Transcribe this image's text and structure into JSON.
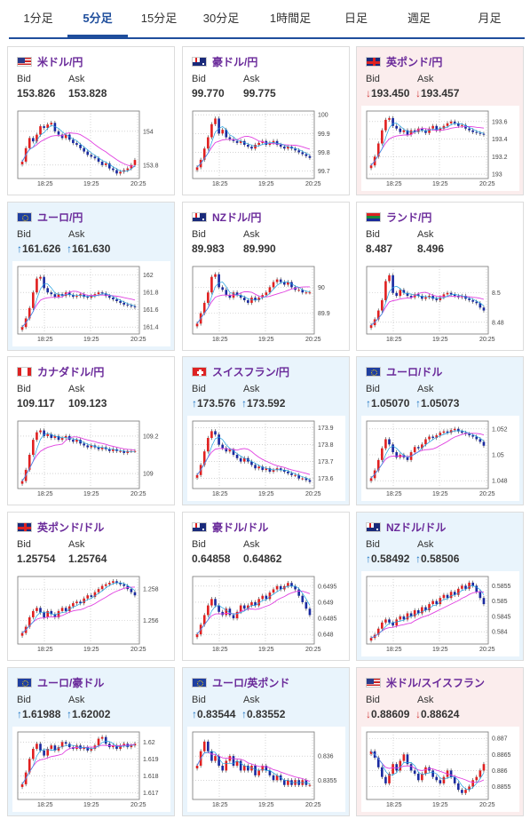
{
  "tabs": [
    {
      "label": "1分足",
      "active": false
    },
    {
      "label": "5分足",
      "active": true
    },
    {
      "label": "15分足",
      "active": false
    },
    {
      "label": "30分足",
      "active": false
    },
    {
      "label": "1時間足",
      "active": false
    },
    {
      "label": "日足",
      "active": false
    },
    {
      "label": "週足",
      "active": false
    },
    {
      "label": "月足",
      "active": false
    }
  ],
  "labels": {
    "bid": "Bid",
    "ask": "Ask"
  },
  "colors": {
    "accent": "#1f4e9c",
    "pair_name": "#6a2a9a",
    "up_card": "#e9f4fc",
    "down_card": "#fbeded",
    "up_arrow": "#1a73c2",
    "down_arrow": "#d23c3c",
    "bull_candle": "#e02020",
    "bear_candle": "#1a2aa0",
    "moving_avg": "#e040e0",
    "moving_avg_short": "#20a0e0"
  },
  "cards": [
    {
      "name": "米ドル/円",
      "flag": "us-jp-flag",
      "bid": "153.826",
      "ask": "153.828",
      "trend": "none",
      "x_ticks": [
        "18:25",
        "19:25",
        "20:25"
      ],
      "y_ticks": [
        "154",
        "153.8"
      ],
      "chart_data": {
        "type": "candlestick",
        "x_ticks": [
          "18:25",
          "19:25",
          "20:25"
        ],
        "y_ticks": [
          154,
          153.8
        ],
        "ylim": [
          153.72,
          154.12
        ],
        "close": [
          153.82,
          153.9,
          153.96,
          153.94,
          153.98,
          154.03,
          154.02,
          154.04,
          154.05,
          154.0,
          153.98,
          153.96,
          153.98,
          153.95,
          153.93,
          153.92,
          153.9,
          153.88,
          153.86,
          153.85,
          153.84,
          153.82,
          153.8,
          153.81,
          153.78,
          153.77,
          153.75,
          153.76,
          153.77,
          153.78,
          153.8,
          153.83
        ]
      }
    },
    {
      "name": "豪ドル/円",
      "flag": "au-jp-flag",
      "bid": "99.770",
      "ask": "99.775",
      "trend": "none",
      "x_ticks": [
        "18:25",
        "19:25",
        "20:25"
      ],
      "y_ticks": [
        "100",
        "99.9",
        "99.8",
        "99.7"
      ],
      "chart_data": {
        "type": "candlestick",
        "x_ticks": [
          "18:25",
          "19:25",
          "20:25"
        ],
        "y_ticks": [
          100,
          99.9,
          99.8,
          99.7
        ],
        "ylim": [
          99.66,
          100.02
        ],
        "close": [
          99.72,
          99.76,
          99.82,
          99.88,
          99.95,
          99.98,
          99.9,
          99.92,
          99.88,
          99.87,
          99.86,
          99.85,
          99.86,
          99.84,
          99.83,
          99.82,
          99.84,
          99.85,
          99.86,
          99.84,
          99.85,
          99.86,
          99.84,
          99.83,
          99.82,
          99.83,
          99.82,
          99.81,
          99.8,
          99.79,
          99.78,
          99.77
        ]
      }
    },
    {
      "name": "英ポンド/円",
      "flag": "gb-jp-flag",
      "bid": "193.450",
      "ask": "193.457",
      "trend": "down",
      "x_ticks": [
        "18:25",
        "19:25",
        "20:25"
      ],
      "y_ticks": [
        "193.6",
        "193.4",
        "193.2",
        "193"
      ],
      "chart_data": {
        "type": "candlestick",
        "x_ticks": [
          "18:25",
          "19:25",
          "20:25"
        ],
        "y_ticks": [
          193.6,
          193.4,
          193.2,
          193
        ],
        "ylim": [
          192.95,
          193.72
        ],
        "close": [
          193.1,
          193.2,
          193.35,
          193.5,
          193.62,
          193.64,
          193.55,
          193.52,
          193.48,
          193.5,
          193.45,
          193.5,
          193.48,
          193.52,
          193.5,
          193.47,
          193.52,
          193.55,
          193.5,
          193.52,
          193.55,
          193.58,
          193.6,
          193.58,
          193.55,
          193.56,
          193.52,
          193.5,
          193.48,
          193.47,
          193.46,
          193.45
        ]
      }
    },
    {
      "name": "ユーロ/円",
      "flag": "eu-jp-flag",
      "bid": "161.626",
      "ask": "161.630",
      "trend": "up",
      "x_ticks": [
        "18:25",
        "19:25",
        "20:25"
      ],
      "y_ticks": [
        "162",
        "161.8",
        "161.6",
        "161.4"
      ],
      "chart_data": {
        "type": "candlestick",
        "x_ticks": [
          "18:25",
          "19:25",
          "20:25"
        ],
        "y_ticks": [
          162,
          161.8,
          161.6,
          161.4
        ],
        "ylim": [
          161.32,
          162.1
        ],
        "close": [
          161.4,
          161.5,
          161.62,
          161.8,
          161.96,
          161.98,
          161.85,
          161.8,
          161.78,
          161.75,
          161.78,
          161.76,
          161.8,
          161.77,
          161.75,
          161.76,
          161.78,
          161.75,
          161.74,
          161.76,
          161.78,
          161.8,
          161.79,
          161.76,
          161.74,
          161.72,
          161.7,
          161.68,
          161.66,
          161.65,
          161.64,
          161.63
        ]
      }
    },
    {
      "name": "NZドル/円",
      "flag": "nz-jp-flag",
      "bid": "89.983",
      "ask": "89.990",
      "trend": "none",
      "x_ticks": [
        "18:25",
        "19:25",
        "20:25"
      ],
      "y_ticks": [
        "90",
        "89.9"
      ],
      "chart_data": {
        "type": "candlestick",
        "x_ticks": [
          "18:25",
          "19:25",
          "20:25"
        ],
        "y_ticks": [
          90,
          89.9
        ],
        "ylim": [
          89.82,
          90.08
        ],
        "close": [
          89.86,
          89.9,
          89.94,
          89.98,
          90.04,
          90.05,
          90.0,
          89.99,
          89.97,
          89.96,
          89.98,
          89.97,
          89.96,
          89.95,
          89.94,
          89.96,
          89.95,
          89.96,
          89.97,
          89.98,
          90.0,
          90.02,
          90.03,
          90.02,
          90.01,
          90.02,
          90.0,
          89.99,
          89.99,
          89.98,
          89.98,
          89.98
        ]
      }
    },
    {
      "name": "ランド/円",
      "flag": "za-jp-flag",
      "bid": "8.487",
      "ask": "8.496",
      "trend": "none",
      "x_ticks": [
        "18:25",
        "19:25",
        "20:25"
      ],
      "y_ticks": [
        "8.5",
        "8.48"
      ],
      "chart_data": {
        "type": "candlestick",
        "x_ticks": [
          "18:25",
          "19:25",
          "20:25"
        ],
        "y_ticks": [
          8.5,
          8.48
        ],
        "ylim": [
          8.472,
          8.518
        ],
        "close": [
          8.478,
          8.482,
          8.488,
          8.495,
          8.508,
          8.512,
          8.5,
          8.498,
          8.502,
          8.5,
          8.498,
          8.497,
          8.499,
          8.498,
          8.496,
          8.497,
          8.498,
          8.496,
          8.495,
          8.497,
          8.499,
          8.5,
          8.499,
          8.498,
          8.497,
          8.498,
          8.496,
          8.495,
          8.494,
          8.493,
          8.49,
          8.488
        ]
      }
    },
    {
      "name": "カナダドル/円",
      "flag": "ca-jp-flag",
      "bid": "109.117",
      "ask": "109.123",
      "trend": "none",
      "x_ticks": [
        "18:25",
        "19:25",
        "20:25"
      ],
      "y_ticks": [
        "109.2",
        "109"
      ],
      "chart_data": {
        "type": "candlestick",
        "x_ticks": [
          "18:25",
          "19:25",
          "20:25"
        ],
        "y_ticks": [
          109.2,
          109
        ],
        "ylim": [
          108.92,
          109.28
        ],
        "close": [
          108.96,
          109.02,
          109.1,
          109.18,
          109.22,
          109.23,
          109.2,
          109.21,
          109.19,
          109.2,
          109.18,
          109.19,
          109.2,
          109.18,
          109.17,
          109.18,
          109.16,
          109.15,
          109.14,
          109.15,
          109.14,
          109.13,
          109.14,
          109.13,
          109.12,
          109.13,
          109.12,
          109.12,
          109.11,
          109.12,
          109.12,
          109.12
        ]
      }
    },
    {
      "name": "スイスフラン/円",
      "flag": "ch-jp-flag",
      "bid": "173.576",
      "ask": "173.592",
      "trend": "up",
      "x_ticks": [
        "18:25",
        "19:25",
        "20:25"
      ],
      "y_ticks": [
        "173.9",
        "173.8",
        "173.7",
        "173.6"
      ],
      "chart_data": {
        "type": "candlestick",
        "x_ticks": [
          "18:25",
          "19:25",
          "20:25"
        ],
        "y_ticks": [
          173.9,
          173.8,
          173.7,
          173.6
        ],
        "ylim": [
          173.54,
          173.94
        ],
        "close": [
          173.62,
          173.68,
          173.76,
          173.84,
          173.88,
          173.86,
          173.8,
          173.78,
          173.76,
          173.77,
          173.74,
          173.72,
          173.7,
          173.72,
          173.7,
          173.68,
          173.66,
          173.67,
          173.65,
          173.66,
          173.64,
          173.65,
          173.66,
          173.65,
          173.64,
          173.63,
          173.62,
          173.62,
          173.6,
          173.6,
          173.59,
          173.58
        ]
      }
    },
    {
      "name": "ユーロ/ドル",
      "flag": "eu-us-flag",
      "bid": "1.05070",
      "ask": "1.05073",
      "trend": "up",
      "x_ticks": [
        "18:25",
        "19:25",
        "20:25"
      ],
      "y_ticks": [
        "1.052",
        "1.05",
        "1.048"
      ],
      "chart_data": {
        "type": "candlestick",
        "x_ticks": [
          "18:25",
          "19:25",
          "20:25"
        ],
        "y_ticks": [
          1.052,
          1.05,
          1.048
        ],
        "ylim": [
          1.0474,
          1.0526
        ],
        "close": [
          1.0482,
          1.0488,
          1.0496,
          1.0505,
          1.0512,
          1.0508,
          1.0502,
          1.0498,
          1.05,
          1.0498,
          1.0496,
          1.0502,
          1.0506,
          1.0505,
          1.0508,
          1.0512,
          1.0514,
          1.0513,
          1.0515,
          1.0517,
          1.0518,
          1.0517,
          1.0519,
          1.052,
          1.0518,
          1.0517,
          1.0516,
          1.0515,
          1.0514,
          1.0512,
          1.051,
          1.0507
        ]
      }
    },
    {
      "name": "英ポンド/ドル",
      "flag": "gb-us-flag",
      "bid": "1.25754",
      "ask": "1.25764",
      "trend": "none",
      "x_ticks": [
        "18:25",
        "19:25",
        "20:25"
      ],
      "y_ticks": [
        "1.258",
        "1.256"
      ],
      "chart_data": {
        "type": "candlestick",
        "x_ticks": [
          "18:25",
          "19:25",
          "20:25"
        ],
        "y_ticks": [
          1.258,
          1.256
        ],
        "ylim": [
          1.2545,
          1.2588
        ],
        "close": [
          1.2552,
          1.2556,
          1.2562,
          1.2566,
          1.2568,
          1.2565,
          1.2562,
          1.2566,
          1.2564,
          1.2562,
          1.2566,
          1.2568,
          1.2566,
          1.2569,
          1.2571,
          1.2572,
          1.2571,
          1.2574,
          1.2576,
          1.2575,
          1.2578,
          1.258,
          1.2582,
          1.2583,
          1.2584,
          1.2585,
          1.2584,
          1.2583,
          1.2582,
          1.258,
          1.2578,
          1.2576
        ]
      }
    },
    {
      "name": "豪ドル/ドル",
      "flag": "au-us-flag",
      "bid": "0.64858",
      "ask": "0.64862",
      "trend": "none",
      "x_ticks": [
        "18:25",
        "19:25",
        "20:25"
      ],
      "y_ticks": [
        "0.6495",
        "0.649",
        "0.6485",
        "0.648"
      ],
      "chart_data": {
        "type": "candlestick",
        "x_ticks": [
          "18:25",
          "19:25",
          "20:25"
        ],
        "y_ticks": [
          0.6495,
          0.649,
          0.6485,
          0.648
        ],
        "ylim": [
          0.6477,
          0.6498
        ],
        "close": [
          0.648,
          0.6483,
          0.6486,
          0.6489,
          0.6491,
          0.6489,
          0.6487,
          0.6486,
          0.6488,
          0.6486,
          0.6485,
          0.6487,
          0.6489,
          0.6488,
          0.6489,
          0.649,
          0.6489,
          0.6491,
          0.6492,
          0.6491,
          0.6493,
          0.6494,
          0.6495,
          0.6494,
          0.6495,
          0.6496,
          0.6495,
          0.6494,
          0.6492,
          0.649,
          0.6488,
          0.6486
        ]
      }
    },
    {
      "name": "NZドル/ドル",
      "flag": "nz-us-flag",
      "bid": "0.58492",
      "ask": "0.58506",
      "trend": "up",
      "x_ticks": [
        "18:25",
        "19:25",
        "20:25"
      ],
      "y_ticks": [
        "0.5855",
        "0.585",
        "0.5845",
        "0.584"
      ],
      "chart_data": {
        "type": "candlestick",
        "x_ticks": [
          "18:25",
          "19:25",
          "20:25"
        ],
        "y_ticks": [
          0.5855,
          0.585,
          0.5845,
          0.584
        ],
        "ylim": [
          0.5836,
          0.5858
        ],
        "close": [
          0.5838,
          0.5839,
          0.5841,
          0.5843,
          0.5844,
          0.5843,
          0.5842,
          0.5844,
          0.5845,
          0.5844,
          0.5846,
          0.5845,
          0.5847,
          0.5846,
          0.5848,
          0.5847,
          0.5849,
          0.585,
          0.5849,
          0.5851,
          0.5852,
          0.5851,
          0.5853,
          0.5852,
          0.5854,
          0.5855,
          0.5854,
          0.5856,
          0.5855,
          0.5853,
          0.5851,
          0.5849
        ]
      }
    },
    {
      "name": "ユーロ/豪ドル",
      "flag": "eu-au-flag",
      "bid": "1.61988",
      "ask": "1.62002",
      "trend": "up",
      "x_ticks": [
        "18:25",
        "19:25",
        "20:25"
      ],
      "y_ticks": [
        "1.62",
        "1.619",
        "1.618",
        "1.617"
      ],
      "chart_data": {
        "type": "candlestick",
        "x_ticks": [
          "18:25",
          "19:25",
          "20:25"
        ],
        "y_ticks": [
          1.62,
          1.619,
          1.618,
          1.617
        ],
        "ylim": [
          1.6166,
          1.6206
        ],
        "close": [
          1.6175,
          1.6182,
          1.619,
          1.6196,
          1.6199,
          1.6195,
          1.6192,
          1.6196,
          1.6198,
          1.6195,
          1.6197,
          1.62,
          1.6199,
          1.6197,
          1.6196,
          1.6198,
          1.6196,
          1.6197,
          1.6195,
          1.6196,
          1.6198,
          1.6202,
          1.6203,
          1.6199,
          1.6197,
          1.6198,
          1.6196,
          1.6198,
          1.6199,
          1.6197,
          1.6198,
          1.6199
        ]
      }
    },
    {
      "name": "ユーロ/英ポンド",
      "flag": "eu-gb-flag",
      "bid": "0.83544",
      "ask": "0.83552",
      "trend": "up",
      "x_ticks": [
        "18:25",
        "19:25",
        "20:25"
      ],
      "y_ticks": [
        "0.836",
        "0.8355"
      ],
      "chart_data": {
        "type": "candlestick",
        "x_ticks": [
          "18:25",
          "19:25",
          "20:25"
        ],
        "y_ticks": [
          0.836,
          0.8355
        ],
        "ylim": [
          0.8351,
          0.8365
        ],
        "close": [
          0.8358,
          0.8361,
          0.8363,
          0.8361,
          0.8359,
          0.836,
          0.8358,
          0.8357,
          0.8359,
          0.836,
          0.8358,
          0.8359,
          0.8357,
          0.8358,
          0.8357,
          0.8358,
          0.8356,
          0.8357,
          0.8358,
          0.8357,
          0.8356,
          0.8355,
          0.8356,
          0.8355,
          0.8354,
          0.8355,
          0.8354,
          0.8355,
          0.8354,
          0.8355,
          0.8354,
          0.8354
        ]
      }
    },
    {
      "name": "米ドル/スイスフラン",
      "flag": "us-ch-flag",
      "bid": "0.88609",
      "ask": "0.88624",
      "trend": "down",
      "x_ticks": [
        "18:25",
        "19:25",
        "20:25"
      ],
      "y_ticks": [
        "0.887",
        "0.8865",
        "0.886",
        "0.8855"
      ],
      "chart_data": {
        "type": "candlestick",
        "x_ticks": [
          "18:25",
          "19:25",
          "20:25"
        ],
        "y_ticks": [
          0.887,
          0.8865,
          0.886,
          0.8855
        ],
        "ylim": [
          0.8851,
          0.8872
        ],
        "close": [
          0.8866,
          0.8864,
          0.8861,
          0.8858,
          0.8856,
          0.8859,
          0.8862,
          0.886,
          0.8863,
          0.8865,
          0.8862,
          0.886,
          0.8859,
          0.8857,
          0.8859,
          0.8861,
          0.886,
          0.8858,
          0.8857,
          0.8856,
          0.8858,
          0.886,
          0.8858,
          0.8856,
          0.8854,
          0.8853,
          0.8854,
          0.8855,
          0.8857,
          0.8858,
          0.886,
          0.8862
        ]
      }
    }
  ]
}
